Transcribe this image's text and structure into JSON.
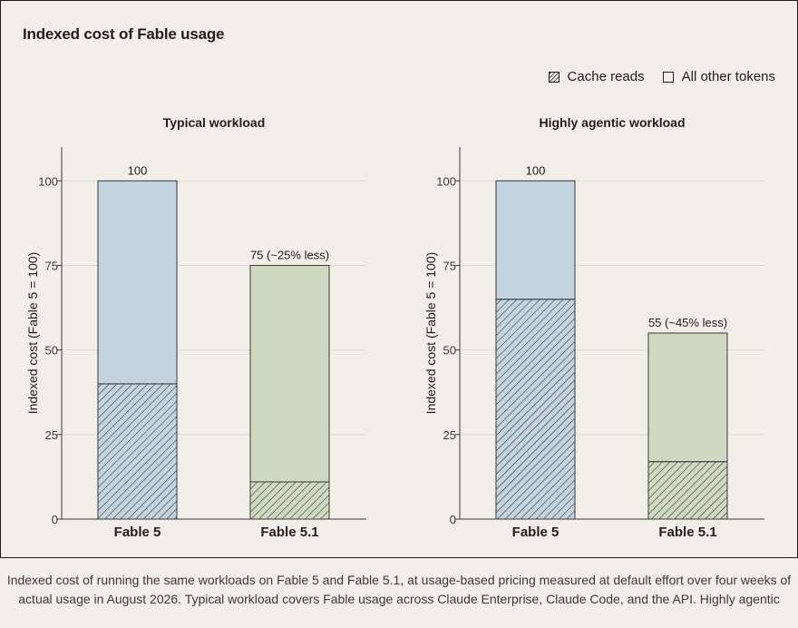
{
  "title": "Indexed cost of Fable usage",
  "legend": [
    {
      "label": "Cache reads",
      "pattern": "hatched"
    },
    {
      "label": "All other tokens",
      "pattern": "solid"
    }
  ],
  "colors": {
    "fable5": "#c4d3e0",
    "fable51": "#cfd9c2",
    "stroke": "#3a3935",
    "grid": "#dcd9d0",
    "background": "#f1efe8"
  },
  "chart_data": [
    {
      "type": "bar",
      "stacked": true,
      "title": "Typical workload",
      "ylabel": "Indexed cost (Fable 5 = 100)",
      "ylim": [
        0,
        110
      ],
      "yticks": [
        0,
        25,
        50,
        75,
        100
      ],
      "categories": [
        "Fable 5",
        "Fable 5.1"
      ],
      "series": [
        {
          "name": "Cache reads",
          "values": [
            40,
            11
          ]
        },
        {
          "name": "All other tokens",
          "values": [
            60,
            64
          ]
        }
      ],
      "totals": [
        100,
        75
      ],
      "bar_labels": [
        "100",
        "75 (~25% less)"
      ],
      "grid": true
    },
    {
      "type": "bar",
      "stacked": true,
      "title": "Highly agentic workload",
      "ylabel": "Indexed cost (Fable 5 = 100)",
      "ylim": [
        0,
        110
      ],
      "yticks": [
        0,
        25,
        50,
        75,
        100
      ],
      "categories": [
        "Fable 5",
        "Fable 5.1"
      ],
      "series": [
        {
          "name": "Cache reads",
          "values": [
            65,
            17
          ]
        },
        {
          "name": "All other tokens",
          "values": [
            35,
            38
          ]
        }
      ],
      "totals": [
        100,
        55
      ],
      "bar_labels": [
        "100",
        "55 (~45% less)"
      ],
      "grid": true
    }
  ],
  "caption": [
    "Indexed cost of running the same workloads on Fable 5 and Fable 5.1, at usage-based pricing measured at default effort over four weeks of",
    "actual usage in August 2026. Typical workload covers Fable usage across Claude Enterprise, Claude Code, and the API. Highly agentic"
  ]
}
